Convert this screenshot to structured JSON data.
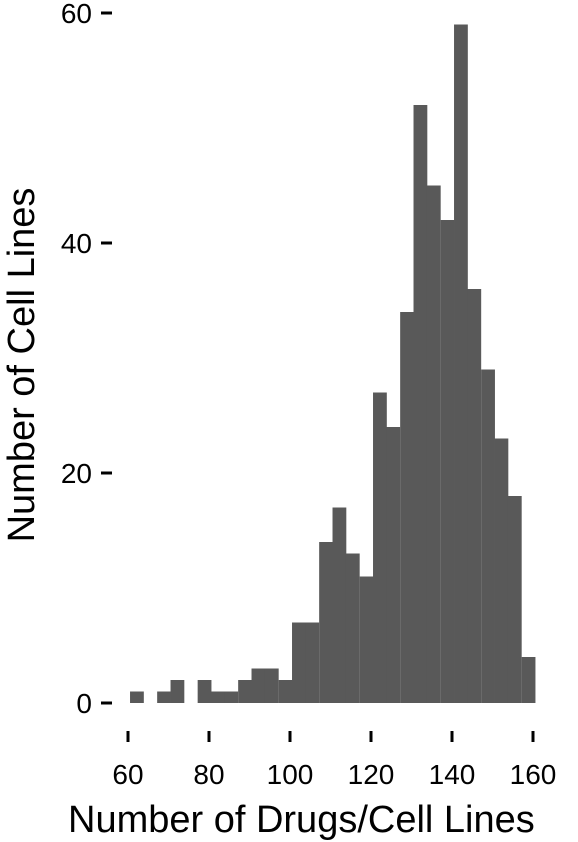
{
  "chart_data": {
    "type": "bar",
    "subtype": "histogram",
    "xlabel": "Number of Drugs/Cell Lines",
    "ylabel": "Number of Cell Lines",
    "bin_width": 3.33,
    "bin_starts": [
      60.5,
      63.8,
      67.2,
      70.5,
      73.8,
      77.2,
      80.5,
      83.8,
      87.2,
      90.5,
      93.8,
      97.2,
      100.5,
      103.8,
      107.2,
      110.5,
      113.8,
      117.2,
      120.5,
      123.8,
      127.2,
      130.5,
      133.8,
      137.2,
      140.5,
      143.8,
      147.2,
      150.5,
      153.8,
      157.2
    ],
    "values": [
      1,
      0,
      1,
      2,
      0,
      2,
      1,
      1,
      2,
      3,
      3,
      2,
      7,
      7,
      14,
      17,
      13,
      11,
      27,
      24,
      34,
      52,
      45,
      42,
      59,
      36,
      29,
      23,
      18,
      4
    ],
    "xlim": [
      60,
      160
    ],
    "ylim": [
      0,
      60
    ],
    "x_ticks": [
      "60",
      "80",
      "100",
      "120",
      "140",
      "160"
    ],
    "y_ticks": [
      "0",
      "20",
      "40",
      "60"
    ],
    "bar_color": "#595959",
    "grid": false,
    "legend": "none"
  }
}
